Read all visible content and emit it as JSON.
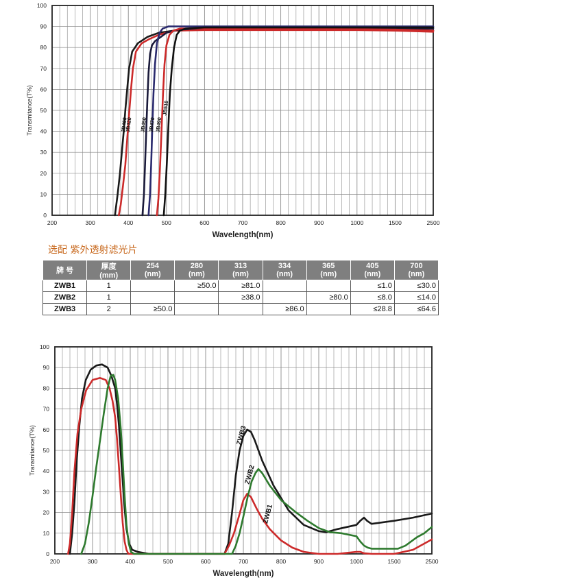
{
  "section_title": "选配  紫外透射滤光片",
  "table": {
    "headers": [
      {
        "top": "牌 号",
        "bottom": ""
      },
      {
        "top": "厚度",
        "bottom": "(mm)"
      },
      {
        "top": "254",
        "bottom": "(nm)"
      },
      {
        "top": "280",
        "bottom": "(nm)"
      },
      {
        "top": "313",
        "bottom": "(nm)"
      },
      {
        "top": "334",
        "bottom": "(nm)"
      },
      {
        "top": "365",
        "bottom": "(nm)"
      },
      {
        "top": "405",
        "bottom": "(nm)"
      },
      {
        "top": "700",
        "bottom": "(nm)"
      }
    ],
    "rows": [
      {
        "model": "ZWB1",
        "thickness": "1",
        "v254": "",
        "v280": "≥50.0",
        "v313": "≥81.0",
        "v334": "",
        "v365": "",
        "v405": "≤1.0",
        "v700": "≤30.0"
      },
      {
        "model": "ZWB2",
        "thickness": "1",
        "v254": "",
        "v280": "",
        "v313": "≥38.0",
        "v334": "",
        "v365": "≥80.0",
        "v405": "≤8.0",
        "v700": "≤14.0"
      },
      {
        "model": "ZWB3",
        "thickness": "2",
        "v254": "≥50.0",
        "v280": "",
        "v313": "",
        "v334": "≥86.0",
        "v365": "",
        "v405": "≤28.8",
        "v700": "≤64.6"
      }
    ]
  },
  "chart_data": [
    {
      "type": "line",
      "title": "",
      "xlabel": "Wavelength(nm)",
      "ylabel": "Transmitance(T%)",
      "x_tick_labels": [
        "200",
        "300",
        "400",
        "500",
        "600",
        "700",
        "800",
        "900",
        "1000",
        "1500",
        "2500"
      ],
      "y_ticks": [
        0,
        10,
        20,
        30,
        40,
        50,
        60,
        70,
        80,
        90,
        100
      ],
      "ylim": [
        0,
        100
      ],
      "grid": true,
      "series": [
        {
          "name": "JB400",
          "color": "#1a1a1a",
          "points": [
            [
              365,
              0
            ],
            [
              372,
              10
            ],
            [
              378,
              20
            ],
            [
              383,
              30
            ],
            [
              388,
              40
            ],
            [
              392,
              50
            ],
            [
              397,
              60
            ],
            [
              402,
              70
            ],
            [
              410,
              78
            ],
            [
              425,
              82
            ],
            [
              450,
              85
            ],
            [
              480,
              87
            ],
            [
              520,
              88
            ],
            [
              600,
              88.5
            ],
            [
              800,
              88.5
            ],
            [
              1000,
              88.5
            ],
            [
              1500,
              88.5
            ],
            [
              2500,
              88
            ]
          ]
        },
        {
          "name": "JB420",
          "color": "#cc2a2a",
          "points": [
            [
              375,
              0
            ],
            [
              380,
              5
            ],
            [
              386,
              14
            ],
            [
              392,
              24
            ],
            [
              397,
              36
            ],
            [
              402,
              48
            ],
            [
              407,
              60
            ],
            [
              412,
              70
            ],
            [
              420,
              78
            ],
            [
              435,
              82
            ],
            [
              455,
              84
            ],
            [
              480,
              86
            ],
            [
              520,
              88
            ],
            [
              600,
              88.3
            ],
            [
              800,
              88.3
            ],
            [
              1000,
              88.3
            ],
            [
              1500,
              88
            ],
            [
              2500,
              87.5
            ]
          ]
        },
        {
          "name": "JB450",
          "color": "#1a1a3a",
          "points": [
            [
              437,
              0
            ],
            [
              441,
              10
            ],
            [
              444,
              25
            ],
            [
              447,
              40
            ],
            [
              450,
              55
            ],
            [
              453,
              68
            ],
            [
              457,
              77
            ],
            [
              462,
              81
            ],
            [
              470,
              83
            ],
            [
              485,
              85
            ],
            [
              500,
              87
            ],
            [
              530,
              88.5
            ],
            [
              600,
              89
            ],
            [
              800,
              89
            ],
            [
              1500,
              89
            ],
            [
              2500,
              89
            ]
          ]
        },
        {
          "name": "JB470",
          "color": "#2a2a6e",
          "points": [
            [
              453,
              0
            ],
            [
              457,
              10
            ],
            [
              460,
              25
            ],
            [
              463,
              42
            ],
            [
              466,
              58
            ],
            [
              470,
              72
            ],
            [
              475,
              82
            ],
            [
              482,
              87
            ],
            [
              490,
              89
            ],
            [
              505,
              90
            ],
            [
              530,
              90
            ],
            [
              600,
              90
            ],
            [
              800,
              90
            ],
            [
              1500,
              90
            ],
            [
              2500,
              90
            ]
          ]
        },
        {
          "name": "JB490",
          "color": "#cc2a2a",
          "points": [
            [
              475,
              0
            ],
            [
              479,
              8
            ],
            [
              483,
              22
            ],
            [
              487,
              40
            ],
            [
              491,
              58
            ],
            [
              495,
              72
            ],
            [
              500,
              81
            ],
            [
              508,
              86
            ],
            [
              518,
              88
            ],
            [
              535,
              89
            ],
            [
              600,
              89
            ],
            [
              800,
              89
            ],
            [
              1500,
              88.5
            ],
            [
              2500,
              88
            ]
          ]
        },
        {
          "name": "JB510",
          "color": "#111111",
          "points": [
            [
              493,
              0
            ],
            [
              497,
              10
            ],
            [
              501,
              25
            ],
            [
              505,
              42
            ],
            [
              509,
              58
            ],
            [
              514,
              70
            ],
            [
              520,
              80
            ],
            [
              527,
              86
            ],
            [
              535,
              88
            ],
            [
              550,
              89
            ],
            [
              600,
              89.5
            ],
            [
              800,
              89.5
            ],
            [
              1500,
              89.5
            ],
            [
              2500,
              89.5
            ]
          ]
        }
      ],
      "labels": [
        {
          "text": "JB400",
          "x": 393,
          "y": 43
        },
        {
          "text": "JB420",
          "x": 405,
          "y": 43
        },
        {
          "text": "JB450",
          "x": 444,
          "y": 43
        },
        {
          "text": "JB470",
          "x": 466,
          "y": 43
        },
        {
          "text": "JB490",
          "x": 484,
          "y": 43
        },
        {
          "text": "JB510",
          "x": 502,
          "y": 51
        }
      ]
    },
    {
      "type": "line",
      "title": "",
      "xlabel": "Wavelength(nm)",
      "ylabel": "Transmitance(T%)",
      "x_tick_labels": [
        "200",
        "300",
        "400",
        "500",
        "600",
        "700",
        "800",
        "900",
        "1000",
        "1500",
        "2500"
      ],
      "y_ticks": [
        0,
        10,
        20,
        30,
        40,
        50,
        60,
        70,
        80,
        90,
        100
      ],
      "ylim": [
        0,
        100
      ],
      "grid": true,
      "series": [
        {
          "name": "ZWB3",
          "color": "#1a1a1a",
          "points": [
            [
              240,
              0
            ],
            [
              246,
              10
            ],
            [
              252,
              25
            ],
            [
              258,
              45
            ],
            [
              265,
              62
            ],
            [
              272,
              75
            ],
            [
              282,
              84
            ],
            [
              295,
              89
            ],
            [
              310,
              91
            ],
            [
              325,
              91.5
            ],
            [
              340,
              90
            ],
            [
              350,
              86
            ],
            [
              360,
              80
            ],
            [
              365,
              72
            ],
            [
              370,
              62
            ],
            [
              375,
              48
            ],
            [
              380,
              35
            ],
            [
              385,
              22
            ],
            [
              390,
              12
            ],
            [
              397,
              5
            ],
            [
              405,
              2
            ],
            [
              420,
              1
            ],
            [
              450,
              0
            ],
            [
              500,
              0
            ],
            [
              650,
              0
            ],
            [
              660,
              5
            ],
            [
              670,
              20
            ],
            [
              680,
              38
            ],
            [
              690,
              50
            ],
            [
              700,
              57
            ],
            [
              710,
              60
            ],
            [
              720,
              59
            ],
            [
              730,
              55
            ],
            [
              750,
              45
            ],
            [
              780,
              33
            ],
            [
              820,
              21
            ],
            [
              860,
              14
            ],
            [
              900,
              11
            ],
            [
              920,
              10.5
            ],
            [
              950,
              12
            ],
            [
              1000,
              14
            ],
            [
              1050,
              16
            ],
            [
              1100,
              17.5
            ],
            [
              1140,
              16
            ],
            [
              1200,
              14.5
            ],
            [
              1500,
              16
            ],
            [
              2000,
              17.5
            ],
            [
              2500,
              19.5
            ]
          ]
        },
        {
          "name": "ZWB1",
          "color": "#cc2a2a",
          "points": [
            [
              235,
              0
            ],
            [
              240,
              5
            ],
            [
              246,
              20
            ],
            [
              252,
              40
            ],
            [
              260,
              58
            ],
            [
              270,
              70
            ],
            [
              283,
              79
            ],
            [
              300,
              84
            ],
            [
              320,
              85
            ],
            [
              335,
              84
            ],
            [
              345,
              80
            ],
            [
              353,
              74
            ],
            [
              360,
              66
            ],
            [
              365,
              55
            ],
            [
              370,
              42
            ],
            [
              375,
              28
            ],
            [
              380,
              15
            ],
            [
              385,
              6
            ],
            [
              390,
              2
            ],
            [
              395,
              0
            ],
            [
              500,
              0
            ],
            [
              650,
              0
            ],
            [
              662,
              4
            ],
            [
              675,
              10
            ],
            [
              688,
              18
            ],
            [
              700,
              26
            ],
            [
              710,
              29
            ],
            [
              720,
              27.5
            ],
            [
              735,
              22
            ],
            [
              750,
              17
            ],
            [
              770,
              12
            ],
            [
              800,
              6.5
            ],
            [
              830,
              3
            ],
            [
              860,
              1
            ],
            [
              900,
              0
            ],
            [
              950,
              0
            ],
            [
              1000,
              1
            ],
            [
              1050,
              1
            ],
            [
              1100,
              0.3
            ],
            [
              1200,
              0
            ],
            [
              1500,
              0
            ],
            [
              2000,
              2
            ],
            [
              2500,
              7
            ]
          ]
        },
        {
          "name": "ZWB2",
          "color": "#2e7a2e",
          "points": [
            [
              270,
              0
            ],
            [
              280,
              5
            ],
            [
              290,
              15
            ],
            [
              300,
              28
            ],
            [
              310,
              42
            ],
            [
              320,
              55
            ],
            [
              330,
              68
            ],
            [
              340,
              80
            ],
            [
              348,
              86
            ],
            [
              355,
              86.5
            ],
            [
              360,
              84
            ],
            [
              368,
              75
            ],
            [
              375,
              60
            ],
            [
              380,
              45
            ],
            [
              385,
              28
            ],
            [
              390,
              14
            ],
            [
              396,
              5
            ],
            [
              402,
              1
            ],
            [
              410,
              0
            ],
            [
              600,
              0
            ],
            [
              670,
              0
            ],
            [
              680,
              4
            ],
            [
              690,
              10
            ],
            [
              700,
              18
            ],
            [
              712,
              28
            ],
            [
              722,
              35
            ],
            [
              732,
              39
            ],
            [
              740,
              41
            ],
            [
              750,
              39
            ],
            [
              770,
              33
            ],
            [
              800,
              26
            ],
            [
              840,
              20
            ],
            [
              870,
              16
            ],
            [
              900,
              12.5
            ],
            [
              930,
              10.5
            ],
            [
              960,
              10
            ],
            [
              1000,
              8.5
            ],
            [
              1050,
              6
            ],
            [
              1100,
              4
            ],
            [
              1150,
              3
            ],
            [
              1200,
              2.5
            ],
            [
              1400,
              2.5
            ],
            [
              1600,
              2.5
            ],
            [
              1800,
              4
            ],
            [
              2100,
              8
            ],
            [
              2300,
              10
            ],
            [
              2500,
              13
            ]
          ]
        }
      ],
      "labels": [
        {
          "text": "ZWB3",
          "x": 700,
          "y": 57
        },
        {
          "text": "ZWB2",
          "x": 722,
          "y": 38
        },
        {
          "text": "ZWB1",
          "x": 770,
          "y": 19
        }
      ]
    }
  ]
}
